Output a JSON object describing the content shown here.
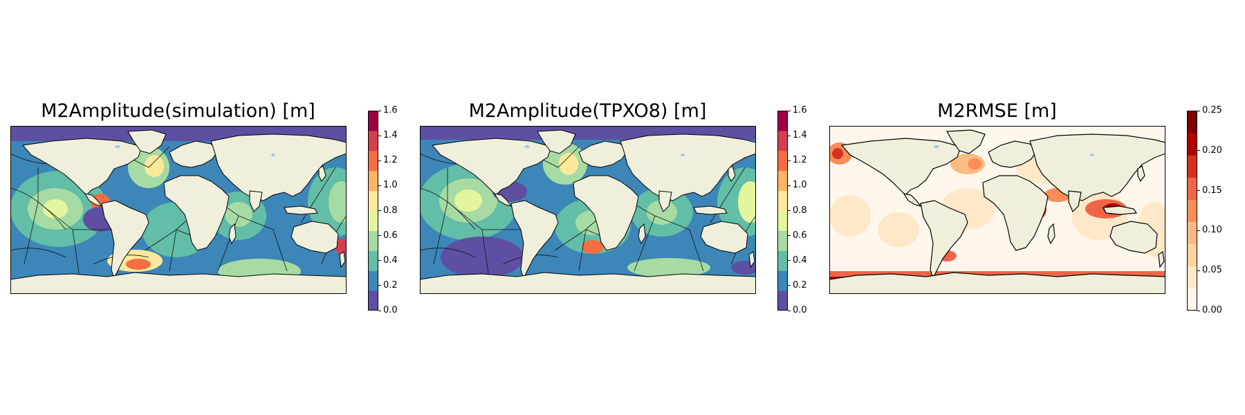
{
  "panels": [
    {
      "title": "M2Amplitude(simulation) [m]",
      "colormap": "Spectral_r",
      "colorbar_ticks": [
        "0.0",
        "0.2",
        "0.4",
        "0.6",
        "0.8",
        "1.0",
        "1.2",
        "1.4",
        "1.6"
      ],
      "colorbar_colors": [
        "#5e4fa2",
        "#3d86b8",
        "#62bea6",
        "#a7dba4",
        "#e5f59d",
        "#fee99a",
        "#fdb466",
        "#f46d43",
        "#d53e4f",
        "#9e0142"
      ]
    },
    {
      "title": "M2Amplitude(TPXO8) [m]",
      "colormap": "Spectral_r",
      "colorbar_ticks": [
        "0.0",
        "0.2",
        "0.4",
        "0.6",
        "0.8",
        "1.0",
        "1.2",
        "1.4",
        "1.6"
      ],
      "colorbar_colors": [
        "#5e4fa2",
        "#3d86b8",
        "#62bea6",
        "#a7dba4",
        "#e5f59d",
        "#fee99a",
        "#fdb466",
        "#f46d43",
        "#d53e4f",
        "#9e0142"
      ]
    },
    {
      "title": "M2RMSE [m]",
      "colormap": "OrRd",
      "colorbar_ticks": [
        "0.00",
        "0.05",
        "0.10",
        "0.15",
        "0.20",
        "0.25"
      ],
      "colorbar_colors": [
        "#fff7ec",
        "#fee8c8",
        "#fdd49e",
        "#fdbb84",
        "#fc8d59",
        "#ef6548",
        "#d7301f",
        "#b30000",
        "#7f0000"
      ]
    }
  ],
  "colors": {
    "land": "#efefdb",
    "lake": "#a9c8e8",
    "coast": "#000000"
  }
}
